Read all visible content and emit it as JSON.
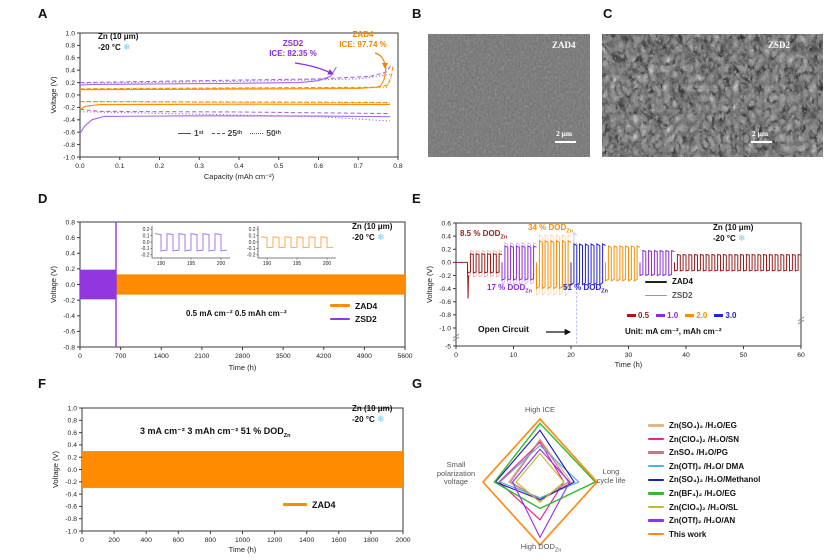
{
  "figure": {
    "panel_labels": {
      "A": "A",
      "B": "B",
      "C": "C",
      "D": "D",
      "E": "E",
      "F": "F",
      "G": "G"
    },
    "condition": {
      "line1": "Zn (10 μm)",
      "line2": "-20 °C",
      "snowflake_icon": "❄"
    },
    "colors": {
      "zad4_orange": "#FF8C00",
      "zsd2_purple": "#9137E0",
      "zsd2_curve": "#A06AE8",
      "snowflake_blue": "#7EC8E8",
      "rate_05_darkred": "#9B1B1B",
      "rate_10_purple": "#8B2BE2",
      "rate_20_orange": "#FF8C00",
      "rate_30_blue": "#2424CC",
      "zsd2_label_purple": "#8B2BE2",
      "zad4_label_orange": "#F28500"
    }
  },
  "panelA": {
    "zsd2_label": "ZSD2",
    "zsd2_ice": "ICE: 82.35 %",
    "zad4_label": "ZAD4",
    "zad4_ice": "ICE: 97.74 %",
    "cycle_legend": [
      {
        "style": "solid",
        "num": "1",
        "sup": "st"
      },
      {
        "style": "dash",
        "num": "25",
        "sup": "th"
      },
      {
        "style": "dot",
        "num": "50",
        "sup": "th"
      }
    ]
  },
  "panelB": {
    "image_label": "ZAD4",
    "scalebar": "2 μm"
  },
  "panelC": {
    "image_label": "ZSD2",
    "scalebar": "2 μm"
  },
  "panelD": {
    "condition_text": "0.5 mA cm⁻²  0.5 mAh cm⁻²",
    "legend": [
      {
        "label": "ZAD4",
        "color": "#FF8C00"
      },
      {
        "label": "ZSD2",
        "color": "#9137E0"
      }
    ]
  },
  "panelE": {
    "dod_labels": [
      {
        "text": "8.5 % DOD",
        "sub": "Zn",
        "color": "#9B1B1B"
      },
      {
        "text": "34 % DOD",
        "sub": "Zn",
        "color": "#FF8C00"
      },
      {
        "text": "17 % DOD",
        "sub": "Zn",
        "color": "#8B2BE2"
      },
      {
        "text": "51 % DOD",
        "sub": "Zn",
        "color": "#2424CC"
      }
    ],
    "open_circuit": "Open Circuit",
    "legend": [
      {
        "label": "ZAD4",
        "color": "#222222",
        "thick": 2
      },
      {
        "label": "ZSD2",
        "color": "#999999",
        "thick": 1
      }
    ],
    "rates": [
      {
        "label": "0.5",
        "color": "#9B1B1B"
      },
      {
        "label": "1.0",
        "color": "#8B2BE2"
      },
      {
        "label": "2.0",
        "color": "#FF8C00"
      },
      {
        "label": "3.0",
        "color": "#2424CC"
      }
    ],
    "unit_text": "Unit: mA cm⁻², mAh cm⁻²"
  },
  "panelF": {
    "condition_text": "3 mA cm⁻²  3 mAh cm⁻²   51 % DOD",
    "condition_sub": "Zn",
    "legend_label": "ZAD4",
    "legend_color": "#FF8C00"
  },
  "panelG": {
    "axis_top": "High ICE",
    "axis_right_1": "Long",
    "axis_right_2": "cycle life",
    "axis_bottom": "High DOD",
    "axis_bottom_sub": "Zn",
    "axis_left_1": "Small",
    "axis_left_2": "polarization",
    "axis_left_3": "voltage"
  },
  "chart_data": [
    {
      "panel": "A",
      "type": "line",
      "xlabel": "Capacity (mAh cm⁻²)",
      "ylabel": "Voltage (V)",
      "xlim": [
        0,
        0.8
      ],
      "ylim": [
        -1.0,
        1.0
      ],
      "xticks": [
        0.0,
        0.1,
        0.2,
        0.3,
        0.4,
        0.5,
        0.6,
        0.7,
        0.8
      ],
      "yticks": [
        -1.0,
        -0.8,
        -0.6,
        -0.4,
        -0.2,
        0.0,
        0.2,
        0.4,
        0.6,
        0.8,
        1.0
      ],
      "series": [
        {
          "name": "ZSD2 1st stripping",
          "color": "#A06AE8",
          "dash": "solid",
          "points": [
            [
              0,
              0.16
            ],
            [
              0.03,
              0.17
            ],
            [
              0.35,
              0.185
            ],
            [
              0.55,
              0.2
            ],
            [
              0.6,
              0.23
            ],
            [
              0.63,
              0.3
            ],
            [
              0.645,
              0.45
            ]
          ]
        },
        {
          "name": "ZSD2 1st plating",
          "color": "#A06AE8",
          "dash": "solid",
          "points": [
            [
              0,
              -0.62
            ],
            [
              0.012,
              -0.5
            ],
            [
              0.03,
              -0.4
            ],
            [
              0.06,
              -0.345
            ],
            [
              0.3,
              -0.335
            ],
            [
              0.6,
              -0.34
            ],
            [
              0.78,
              -0.35
            ]
          ]
        },
        {
          "name": "ZSD2 25th stripping",
          "color": "#A06AE8",
          "dash": "dash",
          "points": [
            [
              0,
              0.2
            ],
            [
              0.3,
              0.23
            ],
            [
              0.6,
              0.26
            ],
            [
              0.73,
              0.3
            ],
            [
              0.77,
              0.37
            ],
            [
              0.785,
              0.5
            ]
          ]
        },
        {
          "name": "ZSD2 25th plating",
          "color": "#A06AE8",
          "dash": "dash",
          "points": [
            [
              0,
              -0.23
            ],
            [
              0.05,
              -0.265
            ],
            [
              0.4,
              -0.275
            ],
            [
              0.78,
              -0.3
            ]
          ]
        },
        {
          "name": "ZSD2 50th stripping",
          "color": "#A06AE8",
          "dash": "dot",
          "points": [
            [
              0,
              0.19
            ],
            [
              0.4,
              0.22
            ],
            [
              0.7,
              0.26
            ],
            [
              0.78,
              0.33
            ]
          ]
        },
        {
          "name": "ZSD2 50th plating",
          "color": "#A06AE8",
          "dash": "dot",
          "points": [
            [
              0,
              -0.27
            ],
            [
              0.3,
              -0.31
            ],
            [
              0.6,
              -0.35
            ],
            [
              0.78,
              -0.42
            ]
          ]
        },
        {
          "name": "ZAD4 1st stripping",
          "color": "#FF8C00",
          "dash": "solid",
          "points": [
            [
              0,
              0.085
            ],
            [
              0.4,
              0.095
            ],
            [
              0.7,
              0.105
            ],
            [
              0.755,
              0.13
            ],
            [
              0.765,
              0.25
            ],
            [
              0.77,
              0.45
            ]
          ]
        },
        {
          "name": "ZAD4 1st plating",
          "color": "#FF8C00",
          "dash": "solid",
          "points": [
            [
              0,
              -0.23
            ],
            [
              0.015,
              -0.18
            ],
            [
              0.05,
              -0.155
            ],
            [
              0.4,
              -0.148
            ],
            [
              0.78,
              -0.152
            ]
          ]
        },
        {
          "name": "ZAD4 25th stripping",
          "color": "#FF8C00",
          "dash": "dash",
          "points": [
            [
              0,
              0.1
            ],
            [
              0.4,
              0.115
            ],
            [
              0.74,
              0.125
            ],
            [
              0.775,
              0.16
            ],
            [
              0.785,
              0.35
            ],
            [
              0.788,
              0.5
            ]
          ]
        },
        {
          "name": "ZAD4 25th plating",
          "color": "#FF8C00",
          "dash": "dash",
          "points": [
            [
              0,
              -0.105
            ],
            [
              0.3,
              -0.112
            ],
            [
              0.78,
              -0.12
            ]
          ]
        },
        {
          "name": "ZAD4 50th stripping",
          "color": "#FF8C00",
          "dash": "dot",
          "points": [
            [
              0,
              0.095
            ],
            [
              0.5,
              0.11
            ],
            [
              0.77,
              0.12
            ],
            [
              0.785,
              0.3
            ]
          ]
        },
        {
          "name": "ZAD4 50th plating",
          "color": "#FF8C00",
          "dash": "dot",
          "points": [
            [
              0,
              -0.11
            ],
            [
              0.4,
              -0.118
            ],
            [
              0.78,
              -0.125
            ]
          ]
        }
      ],
      "ice_values": {
        "ZSD2": 82.35,
        "ZAD4": 97.74
      }
    },
    {
      "panel": "D",
      "type": "band",
      "xlabel": "Time (h)",
      "ylabel": "Voltage (V)",
      "xlim": [
        0,
        5600
      ],
      "ylim": [
        -0.8,
        0.8
      ],
      "xticks": [
        0,
        700,
        1400,
        2100,
        2800,
        3500,
        4200,
        4900,
        5600
      ],
      "yticks": [
        -0.8,
        -0.6,
        -0.4,
        -0.2,
        0.0,
        0.2,
        0.4,
        0.6,
        0.8
      ],
      "bands": [
        {
          "name": "ZAD4",
          "x0": 0,
          "x1": 5600,
          "ylo": -0.13,
          "yhi": 0.13,
          "color": "#FF8C00"
        },
        {
          "name": "ZSD2",
          "x0": 0,
          "x1": 615,
          "ylo": -0.19,
          "yhi": 0.19,
          "color": "#9137E0"
        }
      ],
      "fail_line": {
        "x": 620,
        "color": "#9137E0"
      },
      "insets": [
        {
          "name": "ZSD2 inset",
          "color": "#A06AE8",
          "xlim": [
            188.5,
            201.5
          ],
          "xticks": [
            190,
            195,
            200
          ],
          "ylim": [
            -0.25,
            0.25
          ],
          "yticks": [
            0.2,
            0.1,
            0.0,
            -0.1,
            -0.2
          ],
          "hi": 0.13,
          "lo": -0.14,
          "period": 2
        },
        {
          "name": "ZAD4 inset",
          "color": "#FFA040",
          "xlim": [
            188.5,
            201.5
          ],
          "xticks": [
            190,
            195,
            200
          ],
          "ylim": [
            -0.25,
            0.25
          ],
          "yticks": [
            0.2,
            0.1,
            0.0,
            -0.1,
            -0.2
          ],
          "hi": 0.08,
          "lo": -0.09,
          "period": 2
        }
      ]
    },
    {
      "panel": "E",
      "type": "pulse",
      "xlabel": "Time (h)",
      "ylabel": "Voltage (V)",
      "xlim": [
        0,
        60
      ],
      "yticks_linear": [
        0.6,
        0.4,
        0.2,
        0.0,
        -0.2,
        -0.4,
        -0.6,
        -0.8,
        -1.0
      ],
      "ytick_bottom": -5,
      "xticks": [
        0,
        10,
        20,
        30,
        40,
        50,
        60
      ],
      "zad4_lead": [
        [
          0,
          0
        ],
        [
          2,
          0
        ]
      ],
      "zad4_spike": {
        "x": 2,
        "v": -0.55
      },
      "zad4_segments": [
        {
          "rate": "0.5",
          "color": "#9B1B1B",
          "x0": 2,
          "x1": 8,
          "hi": 0.13,
          "lo": -0.16,
          "period": 1
        },
        {
          "rate": "1.0",
          "color": "#8B2BE2",
          "x0": 8,
          "x1": 14,
          "hi": 0.25,
          "lo": -0.27,
          "period": 1
        },
        {
          "rate": "2.0",
          "color": "#FF8C00",
          "x0": 14,
          "x1": 20,
          "hi": 0.33,
          "lo": -0.4,
          "period": 1
        },
        {
          "rate": "3.0",
          "color": "#2424CC",
          "x0": 20,
          "x1": 26,
          "hi": 0.28,
          "lo": -0.34,
          "period": 1
        },
        {
          "rate": "2.0",
          "color": "#FF8C00",
          "x0": 26,
          "x1": 32,
          "hi": 0.25,
          "lo": -0.28,
          "period": 1
        },
        {
          "rate": "1.0",
          "color": "#8B2BE2",
          "x0": 32,
          "x1": 38,
          "hi": 0.18,
          "lo": -0.2,
          "period": 1
        },
        {
          "rate": "0.5",
          "color": "#9B1B1B",
          "x0": 38,
          "x1": 60,
          "hi": 0.12,
          "lo": -0.13,
          "period": 1
        }
      ],
      "zsd2_segments": [
        {
          "color": "#E8A8A8",
          "x0": 2,
          "x1": 8,
          "hi": 0.18,
          "lo": -0.22,
          "period": 1
        },
        {
          "color": "#CBA8F2",
          "x0": 8,
          "x1": 14,
          "hi": 0.3,
          "lo": -0.33,
          "period": 1
        },
        {
          "color": "#FFD0A0",
          "x0": 14,
          "x1": 20,
          "hi": 0.42,
          "lo": -0.5,
          "period": 1
        },
        {
          "color": "#A8B0F0",
          "x0": 20,
          "x1": 21,
          "hi": 0.45,
          "lo": -0.35,
          "period": 1
        }
      ],
      "zsd2_fail": {
        "x": 21,
        "v_from": 0.3,
        "v_to": -5,
        "color": "#A8B0F0"
      }
    },
    {
      "panel": "F",
      "type": "band",
      "xlabel": "Time (h)",
      "ylabel": "Voltage (V)",
      "xlim": [
        0,
        2000
      ],
      "ylim": [
        -1.0,
        1.0
      ],
      "xticks": [
        0,
        200,
        400,
        600,
        800,
        1000,
        1200,
        1400,
        1600,
        1800,
        2000
      ],
      "yticks": [
        -1.0,
        -0.8,
        -0.6,
        -0.4,
        -0.2,
        0.0,
        0.2,
        0.4,
        0.6,
        0.8,
        1.0
      ],
      "bands": [
        {
          "name": "ZAD4",
          "x0": 0,
          "x1": 2000,
          "ylo": -0.3,
          "yhi": 0.3,
          "color": "#FF8C00"
        }
      ]
    },
    {
      "panel": "G",
      "type": "radar",
      "axes": [
        "High ICE",
        "Long cycle life",
        "High DOD_Zn",
        "Small polarization voltage"
      ],
      "max": 1.0,
      "series": [
        {
          "name": "Zn(SO₄)₂ /H₂O/EG",
          "color": "#DEB887",
          "values": [
            0.68,
            0.55,
            0.3,
            0.55
          ]
        },
        {
          "name": "Zn(ClO₄)₂ /H₂O/SN",
          "color": "#EE2288",
          "values": [
            0.63,
            0.42,
            0.6,
            0.72
          ]
        },
        {
          "name": "ZnSO₄ /H₂O/PG",
          "color": "#C47A85",
          "values": [
            0.66,
            0.5,
            0.28,
            0.52
          ]
        },
        {
          "name": "Zn(OTf)₂ /H₂O/ DMA",
          "color": "#55AAE8",
          "values": [
            0.58,
            0.68,
            0.25,
            0.7
          ]
        },
        {
          "name": "Zn(SO₄)₂ /H₂O/Methanol",
          "color": "#1C1CB8",
          "values": [
            0.82,
            0.6,
            0.28,
            0.78
          ]
        },
        {
          "name": "Zn(BF₄)₂ /H₂O/EG",
          "color": "#2FBB2F",
          "values": [
            0.93,
            0.97,
            0.42,
            0.8
          ]
        },
        {
          "name": "Zn(ClO₄)₂ /H₂O/SL",
          "color": "#BCBC30",
          "values": [
            0.45,
            0.42,
            0.32,
            0.42
          ]
        },
        {
          "name": "Zn(OTf)₂ /H₂O/AN",
          "color": "#9832E8",
          "values": [
            0.52,
            0.52,
            0.88,
            0.48
          ]
        },
        {
          "name": "This work",
          "color": "#FF8C1A",
          "values": [
            1.0,
            1.0,
            1.0,
            1.0
          ]
        }
      ]
    }
  ]
}
